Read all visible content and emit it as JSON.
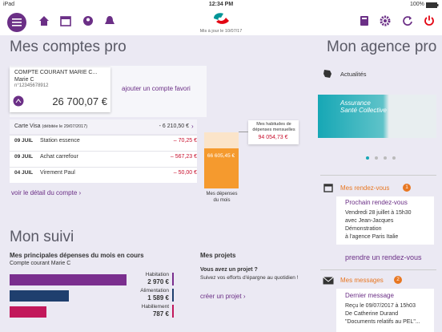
{
  "status_bar": {
    "carrier": "iPad",
    "time": "12:34 PM",
    "battery": "100%"
  },
  "header": {
    "updated": "Mis à jour le 10/07/17"
  },
  "accounts": {
    "title": "Mes comptes pro",
    "card": {
      "name": "COMPTE COURANT MARIE C...",
      "holder": "Marie C",
      "number": "n°12345678912",
      "balance": "26 700,07 €"
    },
    "add_favorite": "ajouter un compte favori",
    "card_visa": {
      "label": "Carte Visa",
      "debit_date": "(débitée le 29/07/2017)",
      "amount": "- 6 210,50 €"
    },
    "transactions": [
      {
        "date": "09 JUIL",
        "label": "Station essence",
        "amount": "– 70,25 €"
      },
      {
        "date": "09 JUIL",
        "label": "Achat carrefour",
        "amount": "– 567,23 €"
      },
      {
        "date": "04 JUIL",
        "label": "Virement Paul",
        "amount": "– 50,00 €"
      }
    ],
    "detail_link": "voir le détail du compte",
    "spending": {
      "amount": "66 605,45 €",
      "label": "Mes dépenses du mois",
      "habits_label": "Mes habitudes de dépenses mensuelles",
      "habits_amount": "94 054,73 €"
    }
  },
  "tracking": {
    "title": "Mon suivi",
    "subtitle": "Mes principales dépenses du mois en cours",
    "account": "Compte courant Marie C",
    "expenses": [
      {
        "label": "Habitation",
        "amount": "2 970 €"
      },
      {
        "label": "Alimentation",
        "amount": "1 589 €"
      },
      {
        "label": "Habillement",
        "amount": "787 €"
      }
    ]
  },
  "projects": {
    "title": "Mes projets",
    "question": "Vous avez un projet ?",
    "text": "Suivez vos efforts d'épargne au quotidien !",
    "link": "créer un projet"
  },
  "agency": {
    "title": "Mon agence pro",
    "news": "Actualités",
    "banner": "Assurance Santé Collective",
    "appointments": {
      "title": "Mes rendez-vous",
      "badge": 1,
      "card_title": "Prochain rendez-vous",
      "date": "Vendredi 28 juillet à 15h30",
      "with": "avec Jean-Jacques",
      "person": "Démonstration",
      "place": "à l'agence Paris Italie",
      "link": "prendre un rendez-vous"
    },
    "messages": {
      "title": "Mes messages",
      "badge": 2,
      "card_title": "Dernier message",
      "received": "Reçu le 09/07/2017 à 15h03",
      "from": "De Catherine Durand",
      "subject": "\"Documents relatifs au PEL\"..."
    }
  }
}
